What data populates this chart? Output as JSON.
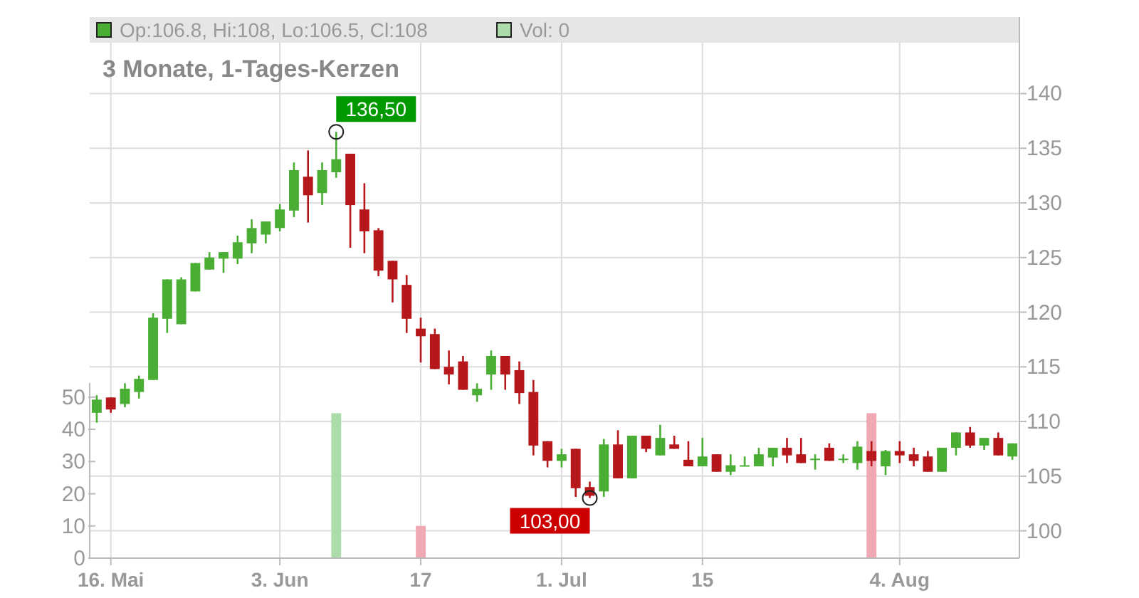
{
  "chart_data": {
    "type": "candlestick",
    "title": "3 Monate, 1-Tages-Kerzen",
    "categories": [
      null,
      "16. Mai",
      null,
      null,
      null,
      null,
      null,
      null,
      null,
      null,
      null,
      null,
      null,
      "3. Jun",
      null,
      null,
      null,
      null,
      null,
      null,
      null,
      null,
      null,
      "17",
      null,
      null,
      null,
      null,
      null,
      null,
      null,
      null,
      null,
      "1. Jul",
      null,
      null,
      null,
      null,
      null,
      null,
      null,
      null,
      null,
      "15",
      null,
      null,
      null,
      null,
      null,
      null,
      null,
      null,
      null,
      null,
      null,
      null,
      null,
      "4. Aug",
      null,
      null,
      null,
      null,
      null,
      null,
      null,
      null
    ],
    "series": [
      {
        "ohlc": [
          [
            110.8,
            112.4,
            109.9,
            112.0
          ],
          [
            112.2,
            112.2,
            110.8,
            111.1
          ],
          [
            111.6,
            113.5,
            111.3,
            113.0
          ],
          [
            112.7,
            114.2,
            112.1,
            113.9
          ],
          [
            113.8,
            119.9,
            113.8,
            119.5
          ],
          [
            119.4,
            123.0,
            118.1,
            123.0
          ],
          [
            118.9,
            123.2,
            118.9,
            123.0
          ],
          [
            121.9,
            124.5,
            121.9,
            124.5
          ],
          [
            123.9,
            125.5,
            123.9,
            125.0
          ],
          [
            124.9,
            125.5,
            123.6,
            125.5
          ],
          [
            124.9,
            127.0,
            124.4,
            126.4
          ],
          [
            126.3,
            128.5,
            125.4,
            127.7
          ],
          [
            127.1,
            128.3,
            126.3,
            128.3
          ],
          [
            127.7,
            129.9,
            127.4,
            129.4
          ],
          [
            129.3,
            133.7,
            128.7,
            133.0
          ],
          [
            132.4,
            134.8,
            128.2,
            130.7
          ],
          [
            130.9,
            133.7,
            129.8,
            133.0
          ],
          [
            132.8,
            136.5,
            132.3,
            134.0
          ],
          [
            134.5,
            134.5,
            125.9,
            129.8
          ],
          [
            129.4,
            131.8,
            125.4,
            127.4
          ],
          [
            127.5,
            127.7,
            123.3,
            123.8
          ],
          [
            124.7,
            124.7,
            120.9,
            123.0
          ],
          [
            122.5,
            123.4,
            118.1,
            119.4
          ],
          [
            118.5,
            119.5,
            115.4,
            117.8
          ],
          [
            118.0,
            118.5,
            114.8,
            114.8
          ],
          [
            115.0,
            116.5,
            113.4,
            114.3
          ],
          [
            115.5,
            116.0,
            112.9,
            112.9
          ],
          [
            112.4,
            113.5,
            111.8,
            113.0
          ],
          [
            114.3,
            116.5,
            112.9,
            116.0
          ],
          [
            116.0,
            116.0,
            112.9,
            114.3
          ],
          [
            114.7,
            115.5,
            111.6,
            112.6
          ],
          [
            112.7,
            113.8,
            106.9,
            107.8
          ],
          [
            108.2,
            108.2,
            105.8,
            106.4
          ],
          [
            106.4,
            107.5,
            105.8,
            107.0
          ],
          [
            107.5,
            107.5,
            103.1,
            103.9
          ],
          [
            104.0,
            104.5,
            103.0,
            103.2
          ],
          [
            103.6,
            108.4,
            103.1,
            107.9
          ],
          [
            107.9,
            109.2,
            104.8,
            104.8
          ],
          [
            104.8,
            108.7,
            104.8,
            108.7
          ],
          [
            108.7,
            108.7,
            107.2,
            107.5
          ],
          [
            106.9,
            109.7,
            106.9,
            108.5
          ],
          [
            107.9,
            108.7,
            107.5,
            107.5
          ],
          [
            106.5,
            108.2,
            105.9,
            105.9
          ],
          [
            105.9,
            108.5,
            105.9,
            106.8
          ],
          [
            107.0,
            107.0,
            105.4,
            105.4
          ],
          [
            105.4,
            107.0,
            105.1,
            106.0
          ],
          [
            105.9,
            106.8,
            105.9,
            106.0
          ],
          [
            105.9,
            107.6,
            105.9,
            107.0
          ],
          [
            106.7,
            107.6,
            105.9,
            107.6
          ],
          [
            107.6,
            108.5,
            106.2,
            106.9
          ],
          [
            107.0,
            108.5,
            106.2,
            106.2
          ],
          [
            106.5,
            107.0,
            105.6,
            106.6
          ],
          [
            107.6,
            108.0,
            106.4,
            106.4
          ],
          [
            106.5,
            107.0,
            106.2,
            106.6
          ],
          [
            106.2,
            108.2,
            105.6,
            107.7
          ],
          [
            107.3,
            108.2,
            105.9,
            106.4
          ],
          [
            105.9,
            107.4,
            105.1,
            107.3
          ],
          [
            107.3,
            108.2,
            106.2,
            106.9
          ],
          [
            107.0,
            107.6,
            105.9,
            106.4
          ],
          [
            106.8,
            107.3,
            105.4,
            105.4
          ],
          [
            105.4,
            107.6,
            105.4,
            107.6
          ],
          [
            107.6,
            109.0,
            106.9,
            109.0
          ],
          [
            109.0,
            109.5,
            107.6,
            107.8
          ],
          [
            107.8,
            108.5,
            107.4,
            108.5
          ],
          [
            108.5,
            109.0,
            106.9,
            106.9
          ],
          [
            106.8,
            108.0,
            106.5,
            108.0
          ]
        ],
        "colors": [
          "#4aad34",
          "#b5171b",
          "#4aad34",
          "#4aad34",
          "#4aad34",
          "#4aad34",
          "#4aad34",
          "#4aad34",
          "#4aad34",
          "#4aad34",
          "#4aad34",
          "#4aad34",
          "#4aad34",
          "#4aad34",
          "#4aad34",
          "#b5171b",
          "#4aad34",
          "#4aad34",
          "#b5171b",
          "#b5171b",
          "#b5171b",
          "#b5171b",
          "#b5171b",
          "#b5171b",
          "#b5171b",
          "#b5171b",
          "#b5171b",
          "#4aad34",
          "#4aad34",
          "#b5171b",
          "#b5171b",
          "#b5171b",
          "#b5171b",
          "#4aad34",
          "#b5171b",
          "#b5171b",
          "#4aad34",
          "#b5171b",
          "#4aad34",
          "#b5171b",
          "#4aad34",
          "#b5171b",
          "#b5171b",
          "#4aad34",
          "#b5171b",
          "#4aad34",
          "#4aad34",
          "#4aad34",
          "#4aad34",
          "#b5171b",
          "#b5171b",
          "#4aad34",
          "#b5171b",
          "#4aad34",
          "#4aad34",
          "#b5171b",
          "#4aad34",
          "#b5171b",
          "#b5171b",
          "#b5171b",
          "#4aad34",
          "#4aad34",
          "#b5171b",
          "#4aad34",
          "#b5171b",
          "#4aad34"
        ]
      },
      {
        "type": "bar",
        "axis": "y2",
        "values": [
          0,
          0,
          0,
          0,
          0,
          0,
          0,
          0,
          0,
          0,
          0,
          0,
          0,
          0,
          0,
          0,
          0,
          45,
          0,
          0,
          0,
          0,
          0,
          10,
          0,
          0,
          0,
          0,
          0,
          0,
          0,
          0,
          0,
          0,
          0,
          0,
          0,
          0,
          0,
          0,
          0,
          0,
          0,
          0,
          0,
          0,
          0,
          0,
          0,
          0,
          0,
          0,
          0,
          0,
          0,
          45,
          0,
          0,
          0,
          0,
          0,
          0,
          0,
          0,
          0,
          0
        ],
        "colors": [
          "#acdcaa",
          "#f0a8b2",
          "#acdcaa",
          "#acdcaa",
          "#acdcaa",
          "#acdcaa",
          "#acdcaa",
          "#acdcaa",
          "#acdcaa",
          "#acdcaa",
          "#acdcaa",
          "#acdcaa",
          "#acdcaa",
          "#acdcaa",
          "#acdcaa",
          "#f0a8b2",
          "#acdcaa",
          "#acdcaa",
          "#f0a8b2",
          "#f0a8b2",
          "#f0a8b2",
          "#f0a8b2",
          "#f0a8b2",
          "#f0a8b2",
          "#f0a8b2",
          "#f0a8b2",
          "#f0a8b2",
          "#acdcaa",
          "#acdcaa",
          "#f0a8b2",
          "#f0a8b2",
          "#f0a8b2",
          "#f0a8b2",
          "#acdcaa",
          "#f0a8b2",
          "#f0a8b2",
          "#acdcaa",
          "#f0a8b2",
          "#acdcaa",
          "#f0a8b2",
          "#acdcaa",
          "#f0a8b2",
          "#f0a8b2",
          "#acdcaa",
          "#f0a8b2",
          "#acdcaa",
          "#acdcaa",
          "#acdcaa",
          "#acdcaa",
          "#f0a8b2",
          "#f0a8b2",
          "#acdcaa",
          "#f0a8b2",
          "#acdcaa",
          "#acdcaa",
          "#f0a8b2",
          "#acdcaa",
          "#f0a8b2",
          "#f0a8b2",
          "#f0a8b2",
          "#acdcaa",
          "#acdcaa",
          "#f0a8b2",
          "#acdcaa",
          "#f0a8b2",
          "#acdcaa"
        ]
      }
    ],
    "ylim": [
      97.5,
      147
    ],
    "yticks": [
      100,
      105,
      110,
      115,
      120,
      125,
      130,
      135,
      140
    ],
    "y2lim": [
      0,
      168
    ],
    "y2ticks": [
      0,
      10,
      20,
      30,
      40,
      50
    ],
    "grid": true,
    "annotations": [
      "Op:106.8, Hi:108, Lo:106.5, Cl:108",
      "Vol: 0",
      "136,50",
      "103,00"
    ]
  }
}
